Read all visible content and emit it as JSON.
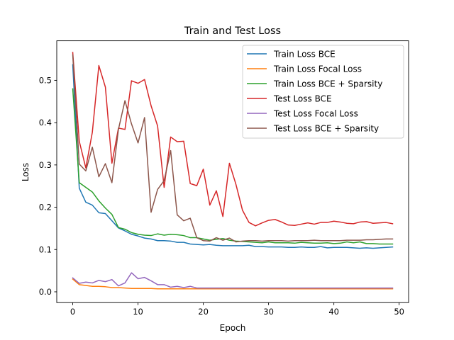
{
  "chart_data": {
    "type": "line",
    "title": "Train and Test Loss",
    "xlabel": "Epoch",
    "ylabel": "Loss",
    "xlim": [
      -2.45,
      51.45
    ],
    "ylim": [
      -0.0255,
      0.5935
    ],
    "xticks": [
      0,
      10,
      20,
      30,
      40,
      50
    ],
    "yticks": [
      0.0,
      0.1,
      0.2,
      0.3,
      0.4,
      0.5
    ],
    "xtick_labels": [
      "0",
      "10",
      "20",
      "30",
      "40",
      "50"
    ],
    "ytick_labels": [
      "0.0",
      "0.1",
      "0.2",
      "0.3",
      "0.4",
      "0.5"
    ],
    "grid": false,
    "legend_position": "top-right",
    "series": [
      {
        "name": "Train Loss BCE",
        "color": "#1f77b4",
        "values": [
          0.537,
          0.245,
          0.212,
          0.205,
          0.187,
          0.185,
          0.168,
          0.151,
          0.144,
          0.136,
          0.132,
          0.127,
          0.125,
          0.121,
          0.121,
          0.12,
          0.117,
          0.117,
          0.113,
          0.112,
          0.111,
          0.112,
          0.11,
          0.109,
          0.109,
          0.109,
          0.109,
          0.11,
          0.107,
          0.107,
          0.106,
          0.106,
          0.106,
          0.105,
          0.105,
          0.106,
          0.105,
          0.105,
          0.107,
          0.104,
          0.105,
          0.105,
          0.105,
          0.104,
          0.103,
          0.104,
          0.103,
          0.104,
          0.105,
          0.106
        ]
      },
      {
        "name": "Train Loss Focal Loss",
        "color": "#ff7f0e",
        "values": [
          0.03,
          0.017,
          0.015,
          0.013,
          0.013,
          0.012,
          0.01,
          0.01,
          0.009,
          0.008,
          0.008,
          0.008,
          0.008,
          0.007,
          0.007,
          0.007,
          0.007,
          0.007,
          0.007,
          0.007,
          0.007,
          0.007,
          0.007,
          0.007,
          0.007,
          0.007,
          0.007,
          0.007,
          0.007,
          0.007,
          0.007,
          0.007,
          0.007,
          0.007,
          0.007,
          0.007,
          0.007,
          0.007,
          0.007,
          0.007,
          0.007,
          0.007,
          0.007,
          0.007,
          0.007,
          0.007,
          0.007,
          0.007,
          0.007,
          0.007
        ]
      },
      {
        "name": "Train Loss BCE + Sparsity",
        "color": "#2ca02c",
        "values": [
          0.48,
          0.258,
          0.247,
          0.236,
          0.215,
          0.198,
          0.183,
          0.152,
          0.148,
          0.14,
          0.136,
          0.134,
          0.133,
          0.137,
          0.134,
          0.136,
          0.135,
          0.133,
          0.128,
          0.128,
          0.125,
          0.122,
          0.124,
          0.126,
          0.122,
          0.12,
          0.119,
          0.118,
          0.117,
          0.116,
          0.118,
          0.116,
          0.116,
          0.116,
          0.115,
          0.117,
          0.116,
          0.115,
          0.115,
          0.116,
          0.114,
          0.115,
          0.118,
          0.116,
          0.118,
          0.114,
          0.114,
          0.113,
          0.113,
          0.113
        ]
      },
      {
        "name": "Test Loss BCE",
        "color": "#d62728",
        "values": [
          0.566,
          0.356,
          0.293,
          0.377,
          0.535,
          0.484,
          0.304,
          0.387,
          0.384,
          0.499,
          0.493,
          0.502,
          0.44,
          0.392,
          0.247,
          0.366,
          0.355,
          0.356,
          0.256,
          0.251,
          0.29,
          0.205,
          0.239,
          0.178,
          0.304,
          0.254,
          0.193,
          0.164,
          0.156,
          0.163,
          0.169,
          0.171,
          0.165,
          0.158,
          0.157,
          0.16,
          0.163,
          0.16,
          0.164,
          0.164,
          0.167,
          0.165,
          0.162,
          0.161,
          0.165,
          0.166,
          0.162,
          0.163,
          0.164,
          0.161
        ]
      },
      {
        "name": "Test Loss Focal Loss",
        "color": "#9467bd",
        "values": [
          0.033,
          0.02,
          0.023,
          0.021,
          0.027,
          0.024,
          0.029,
          0.014,
          0.021,
          0.045,
          0.031,
          0.034,
          0.026,
          0.017,
          0.017,
          0.011,
          0.013,
          0.01,
          0.013,
          0.009,
          0.009,
          0.009,
          0.009,
          0.009,
          0.009,
          0.009,
          0.009,
          0.009,
          0.009,
          0.009,
          0.009,
          0.009,
          0.009,
          0.009,
          0.009,
          0.009,
          0.009,
          0.009,
          0.009,
          0.009,
          0.009,
          0.009,
          0.009,
          0.009,
          0.009,
          0.009,
          0.009,
          0.009,
          0.009,
          0.009
        ]
      },
      {
        "name": "Test Loss BCE + Sparsity",
        "color": "#8c564b",
        "values": [
          0.56,
          0.302,
          0.286,
          0.342,
          0.272,
          0.303,
          0.258,
          0.384,
          0.452,
          0.397,
          0.352,
          0.412,
          0.188,
          0.242,
          0.263,
          0.334,
          0.182,
          0.168,
          0.174,
          0.128,
          0.121,
          0.12,
          0.128,
          0.122,
          0.127,
          0.118,
          0.12,
          0.121,
          0.121,
          0.12,
          0.121,
          0.121,
          0.121,
          0.12,
          0.121,
          0.121,
          0.121,
          0.122,
          0.121,
          0.121,
          0.121,
          0.121,
          0.122,
          0.122,
          0.122,
          0.123,
          0.123,
          0.124,
          0.125,
          0.125
        ]
      }
    ]
  }
}
